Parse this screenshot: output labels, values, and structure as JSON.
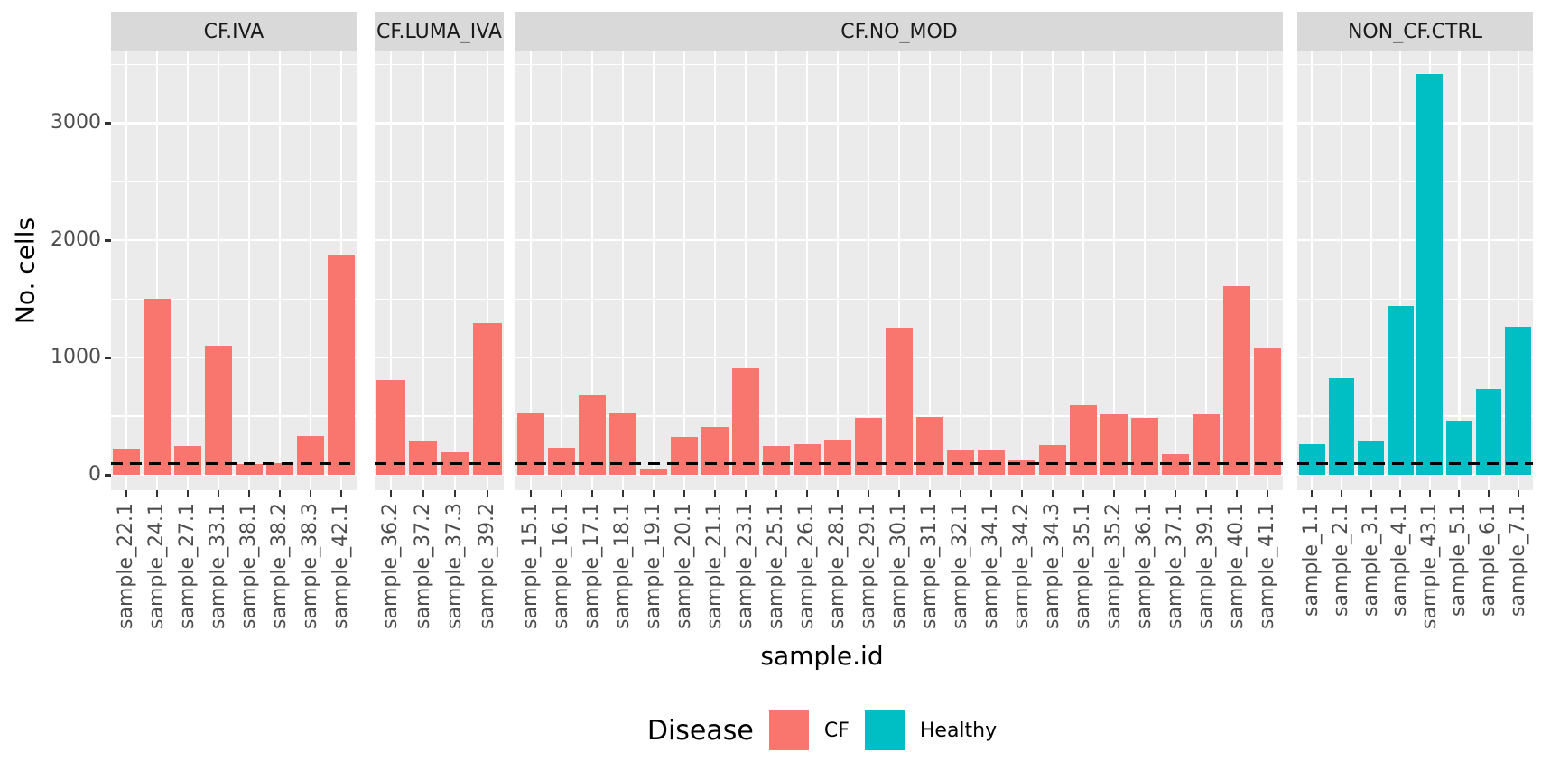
{
  "chart_data": {
    "type": "bar",
    "title": "",
    "xlabel": "sample.id",
    "ylabel": "No. cells",
    "y_ticks": [
      0,
      1000,
      2000,
      3000
    ],
    "y_minor_ticks": [
      500,
      1500,
      2500,
      3500
    ],
    "ylim": [
      -130,
      3610
    ],
    "grid": "white on gray panel",
    "legend_position": "bottom",
    "reference_line": {
      "value": 100,
      "style": "dashed",
      "color": "#000000"
    },
    "legend": {
      "title": "Disease",
      "entries": [
        {
          "label": "CF",
          "color": "#F8766D"
        },
        {
          "label": "Healthy",
          "color": "#00BFC4"
        }
      ]
    },
    "facets": [
      {
        "label": "CF.IVA",
        "group": "CF",
        "color": "#F8766D",
        "categories": [
          "sample_22.1",
          "sample_24.1",
          "sample_27.1",
          "sample_33.1",
          "sample_38.1",
          "sample_38.2",
          "sample_38.3",
          "sample_42.1"
        ],
        "values": [
          220,
          1500,
          250,
          1100,
          90,
          100,
          330,
          1870
        ]
      },
      {
        "label": "CF.LUMA_IVA",
        "group": "CF",
        "color": "#F8766D",
        "categories": [
          "sample_36.2",
          "sample_37.2",
          "sample_37.3",
          "sample_39.2"
        ],
        "values": [
          810,
          285,
          195,
          1290
        ]
      },
      {
        "label": "CF.NO_MOD",
        "group": "CF",
        "color": "#F8766D",
        "categories": [
          "sample_15.1",
          "sample_16.1",
          "sample_17.1",
          "sample_18.1",
          "sample_19.1",
          "sample_20.1",
          "sample_21.1",
          "sample_23.1",
          "sample_25.1",
          "sample_26.1",
          "sample_28.1",
          "sample_29.1",
          "sample_30.1",
          "sample_31.1",
          "sample_32.1",
          "sample_34.1",
          "sample_34.2",
          "sample_34.3",
          "sample_35.1",
          "sample_35.2",
          "sample_36.1",
          "sample_37.1",
          "sample_39.1",
          "sample_40.1",
          "sample_41.1"
        ],
        "values": [
          535,
          230,
          685,
          525,
          50,
          325,
          405,
          905,
          245,
          265,
          300,
          485,
          1255,
          490,
          205,
          205,
          130,
          255,
          595,
          515,
          485,
          180,
          515,
          1610,
          1085
        ]
      },
      {
        "label": "NON_CF.CTRL",
        "group": "Healthy",
        "color": "#00BFC4",
        "categories": [
          "sample_1.1",
          "sample_2.1",
          "sample_3.1",
          "sample_4.1",
          "sample_43.1",
          "sample_5.1",
          "sample_6.1",
          "sample_7.1"
        ],
        "values": [
          260,
          825,
          285,
          1440,
          3420,
          460,
          730,
          1260
        ]
      }
    ]
  },
  "colors": {
    "panel_bg": "#EBEBEB",
    "strip_bg": "#D9D9D9",
    "grid": "#FFFFFF",
    "tick_text": "#4D4D4D",
    "cf": "#F8766D",
    "healthy": "#00BFC4"
  }
}
